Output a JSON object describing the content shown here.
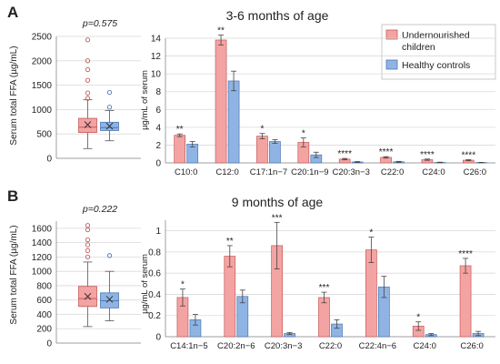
{
  "colors": {
    "undernourished": "#f4a3a3",
    "undernourished_stroke": "#c45a5a",
    "healthy": "#8fb4e3",
    "healthy_stroke": "#4a77b4",
    "grid": "#d9d9d9",
    "axis": "#888888"
  },
  "chart_data": [
    {
      "id": "A-box",
      "type": "box",
      "panel_label": "A",
      "pvalue_label": "p=0.575",
      "ylabel": "Serum total FFA (µg/mL)",
      "ylim": [
        0,
        2500
      ],
      "yticks": [
        0,
        500,
        1000,
        1500,
        2000,
        2500
      ],
      "grid": true,
      "boxes": [
        {
          "group": "Undernourished children",
          "whisker_low": 200,
          "q1": 530,
          "median": 640,
          "q3": 820,
          "whisker_high": 1200,
          "mean": 690,
          "outliers": [
            1230,
            1340,
            1600,
            1820,
            2000,
            2430
          ]
        },
        {
          "group": "Healthy controls",
          "whisker_low": 360,
          "q1": 570,
          "median": 630,
          "q3": 740,
          "whisker_high": 980,
          "mean": 660,
          "outliers": [
            1050,
            1350
          ]
        }
      ]
    },
    {
      "id": "A-bar",
      "type": "bar",
      "title": "3-6 months of age",
      "ylabel": "µg/mL of serum",
      "ylim": [
        0,
        14
      ],
      "yticks": [
        0,
        2,
        4,
        6,
        8,
        10,
        12,
        14
      ],
      "grid": true,
      "legend_position": "top-right",
      "categories": [
        "C10:0",
        "C12:0",
        "C17:1n−7",
        "C20:1n−9",
        "C20:3n−3",
        "C22:0",
        "C24:0",
        "C26:0"
      ],
      "significance": [
        "**",
        "**",
        "*",
        "*",
        "****",
        "****",
        "****",
        "****"
      ],
      "series": [
        {
          "name": "Undernourished children",
          "color_key": "undernourished",
          "values": [
            3.1,
            13.8,
            3.0,
            2.3,
            0.42,
            0.62,
            0.36,
            0.3
          ],
          "errors": [
            0.15,
            0.55,
            0.3,
            0.5,
            0.08,
            0.08,
            0.07,
            0.06
          ]
        },
        {
          "name": "Healthy controls",
          "color_key": "healthy",
          "values": [
            2.1,
            9.2,
            2.4,
            0.9,
            0.1,
            0.12,
            0.05,
            0.04
          ],
          "errors": [
            0.3,
            1.1,
            0.2,
            0.3,
            0.05,
            0.05,
            0.03,
            0.02
          ]
        }
      ]
    },
    {
      "id": "B-box",
      "type": "box",
      "panel_label": "B",
      "pvalue_label": "p=0.222",
      "ylabel": "Serum total FFA (µg/mL)",
      "ylim": [
        0,
        1700
      ],
      "yticks": [
        0,
        200,
        400,
        600,
        800,
        1000,
        1200,
        1400,
        1600
      ],
      "grid": true,
      "boxes": [
        {
          "group": "Undernourished children",
          "whisker_low": 230,
          "q1": 510,
          "median": 620,
          "q3": 790,
          "whisker_high": 1130,
          "mean": 650,
          "outliers": [
            1200,
            1290,
            1370,
            1440,
            1580,
            1640
          ]
        },
        {
          "group": "Healthy controls",
          "whisker_low": 310,
          "q1": 490,
          "median": 590,
          "q3": 700,
          "whisker_high": 1000,
          "mean": 610,
          "outliers": [
            1220
          ]
        }
      ]
    },
    {
      "id": "B-bar",
      "type": "bar",
      "title": "9 months of age",
      "ylabel": "µg/mL of serum",
      "ylim": [
        0,
        1.1
      ],
      "yticks": [
        0,
        0.2,
        0.4,
        0.6,
        0.8,
        1
      ],
      "grid": true,
      "categories": [
        "C14:1n−5",
        "C20:2n−6",
        "C20:3n−3",
        "C22:0",
        "C22:4n−6",
        "C24:0",
        "C26:0"
      ],
      "significance": [
        "*",
        "**",
        "***",
        "***",
        "*",
        "*",
        "****"
      ],
      "series": [
        {
          "name": "Undernourished children",
          "color_key": "undernourished",
          "values": [
            0.37,
            0.76,
            0.86,
            0.37,
            0.82,
            0.1,
            0.67
          ],
          "errors": [
            0.08,
            0.1,
            0.22,
            0.05,
            0.12,
            0.04,
            0.07
          ]
        },
        {
          "name": "Healthy controls",
          "color_key": "healthy",
          "values": [
            0.16,
            0.38,
            0.03,
            0.12,
            0.47,
            0.02,
            0.03
          ],
          "errors": [
            0.05,
            0.06,
            0.01,
            0.04,
            0.1,
            0.01,
            0.02
          ]
        }
      ]
    }
  ]
}
